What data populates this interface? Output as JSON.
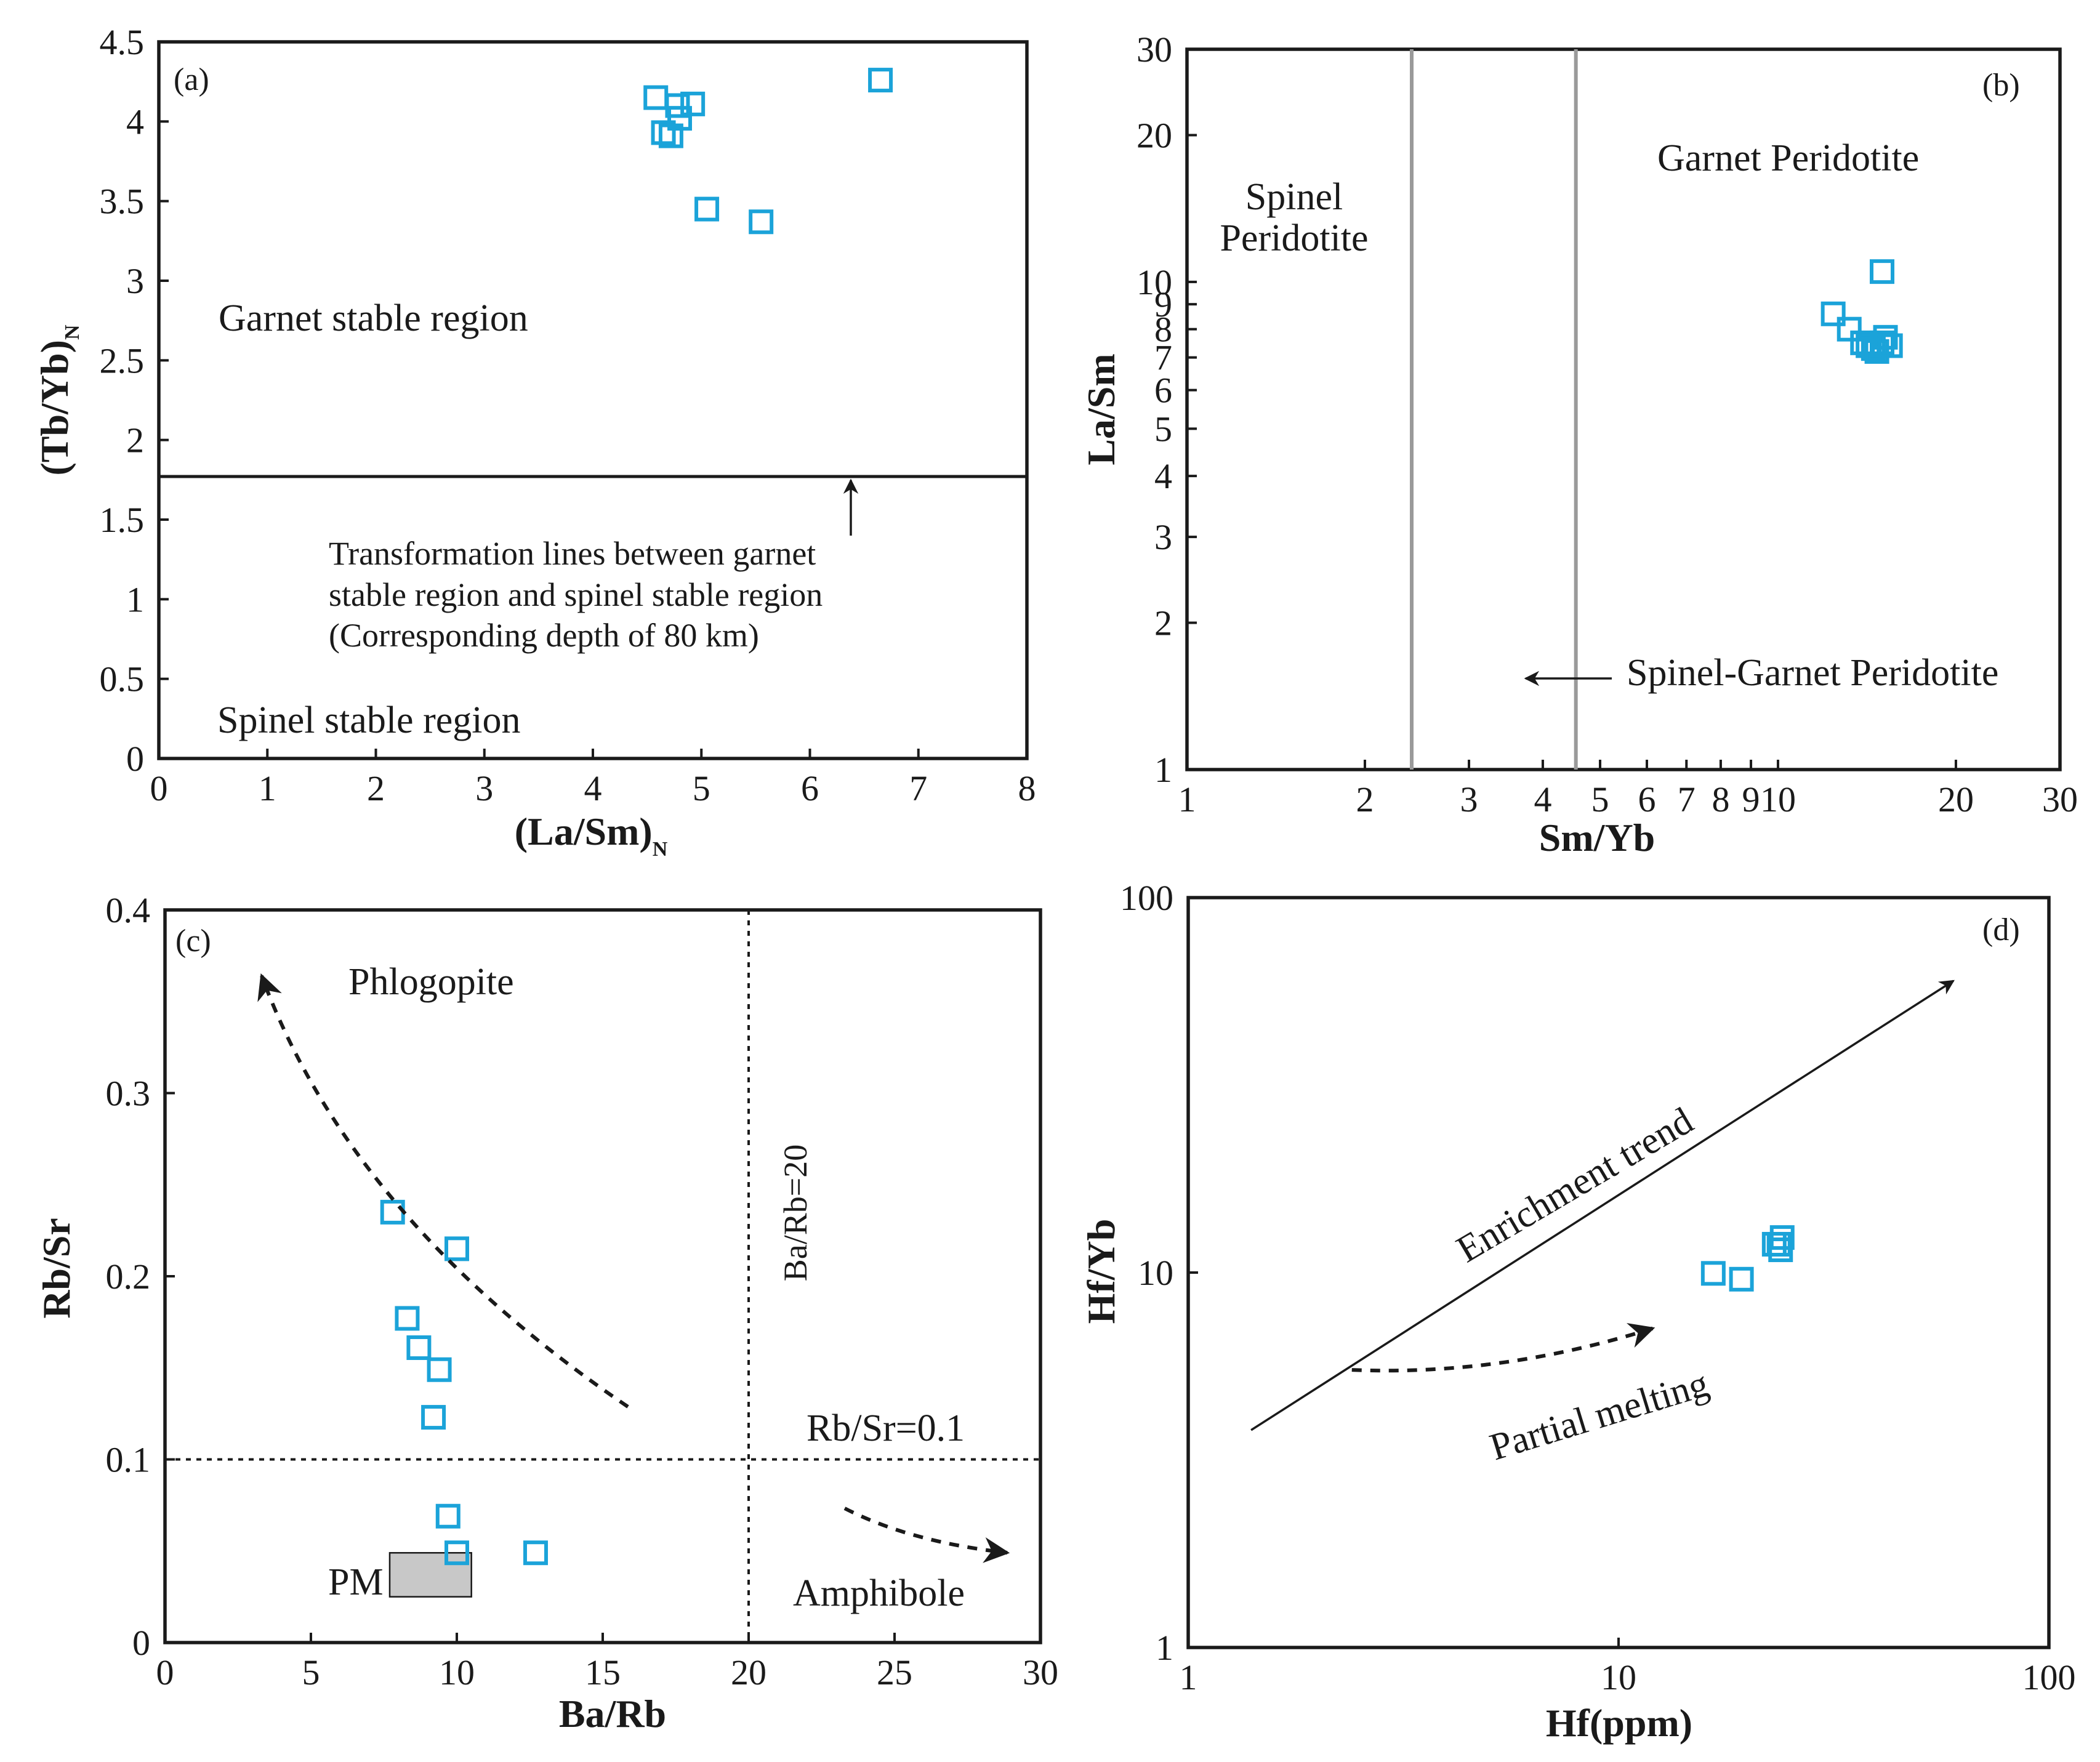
{
  "colors": {
    "marker": "#1ba3d9",
    "axis": "#1a1a1a",
    "boundary_gray": "#9a9a9a",
    "pm_fill": "#c8c8c8"
  },
  "chart_data": [
    {
      "id": "a",
      "type": "scatter",
      "panel_label": "(a)",
      "xlabel": "(La/Sm)",
      "xlabel_sub": "N",
      "ylabel": "(Tb/Yb)",
      "ylabel_sub": "N",
      "xlim": [
        0,
        8
      ],
      "ylim": [
        0,
        4.5
      ],
      "xscale": "linear",
      "yscale": "linear",
      "xticks": [
        0,
        1,
        2,
        3,
        4,
        5,
        6,
        7,
        8
      ],
      "yticks": [
        0,
        0.5,
        1,
        1.5,
        2,
        2.5,
        3,
        3.5,
        4,
        4.5
      ],
      "x": [
        4.58,
        4.65,
        4.72,
        4.78,
        4.8,
        4.92,
        5.05,
        5.55,
        6.65
      ],
      "y": [
        4.15,
        3.93,
        3.91,
        4.1,
        4.02,
        4.11,
        3.45,
        3.37,
        4.26
      ],
      "boundary_y": 1.78,
      "annotations": {
        "upper_region": "Garnet stable region",
        "lower_region": "Spinel stable region",
        "line_note_1": "Transformation lines between garnet",
        "line_note_2": "stable region and spinel stable region",
        "line_note_3": "(Corresponding depth of 80 km)"
      }
    },
    {
      "id": "b",
      "type": "scatter",
      "panel_label": "(b)",
      "xlabel": "Sm/Yb",
      "ylabel": "La/Sm",
      "xlim": [
        1,
        30
      ],
      "ylim": [
        1,
        30
      ],
      "xscale": "log",
      "yscale": "log",
      "xticks": [
        1,
        2,
        3,
        4,
        5,
        6,
        7,
        8,
        9,
        10,
        20,
        30
      ],
      "yticks": [
        1,
        2,
        3,
        4,
        5,
        6,
        7,
        8,
        9,
        10,
        20,
        30
      ],
      "x": [
        12.4,
        13.2,
        13.9,
        14.2,
        14.5,
        14.7,
        15.0,
        15.2,
        15.5,
        15.0
      ],
      "y": [
        8.6,
        8.0,
        7.5,
        7.4,
        7.3,
        7.2,
        7.5,
        7.7,
        7.4,
        10.5
      ],
      "boundaries_x": [
        2.4,
        4.55
      ],
      "annotations": {
        "left_region_1": "Spinel",
        "left_region_2": "Peridotite",
        "right_region": "Garnet Peridotite",
        "middle_region": "Spinel-Garnet Peridotite"
      }
    },
    {
      "id": "c",
      "type": "scatter",
      "panel_label": "(c)",
      "xlabel": "Ba/Rb",
      "ylabel": "Rb/Sr",
      "xlim": [
        0,
        30
      ],
      "ylim": [
        0,
        0.4
      ],
      "xscale": "linear",
      "yscale": "linear",
      "xticks": [
        0,
        5,
        10,
        15,
        20,
        25,
        30
      ],
      "yticks": [
        0,
        0.1,
        0.2,
        0.3,
        0.4
      ],
      "x": [
        7.8,
        10.0,
        8.3,
        8.7,
        9.4,
        9.2,
        9.7,
        10.0,
        12.7
      ],
      "y": [
        0.235,
        0.215,
        0.177,
        0.161,
        0.149,
        0.123,
        0.069,
        0.049,
        0.049
      ],
      "ref_line_x": 20,
      "ref_line_y": 0.1,
      "pm_box": {
        "x": [
          7.7,
          10.5
        ],
        "y": [
          0.025,
          0.049
        ]
      },
      "annotations": {
        "phlogopite": "Phlogopite",
        "amphibole": "Amphibole",
        "pm": "PM",
        "ba_rb_line": "Ba/Rb=20",
        "rb_sr_line": "Rb/Sr=0.1"
      }
    },
    {
      "id": "d",
      "type": "scatter",
      "panel_label": "(d)",
      "xlabel": "Hf(ppm)",
      "ylabel": "Hf/Yb",
      "xlim": [
        1,
        100
      ],
      "ylim": [
        1,
        100
      ],
      "xscale": "log",
      "yscale": "log",
      "xticks": [
        1,
        10,
        100
      ],
      "yticks": [
        1,
        10,
        100
      ],
      "x": [
        16.6,
        19.3,
        23.0,
        23.8,
        24.0,
        23.6
      ],
      "y": [
        9.95,
        9.6,
        11.9,
        11.5,
        12.4,
        11.9
      ],
      "trend_line": {
        "x": [
          1.4,
          60
        ],
        "y": [
          3.8,
          60
        ]
      },
      "melt_arrow": {
        "x": [
          2.4,
          12
        ],
        "y": [
          5.5,
          7.1
        ]
      },
      "annotations": {
        "enrichment": "Enrichment trend",
        "melting": "Partial melting"
      }
    }
  ]
}
